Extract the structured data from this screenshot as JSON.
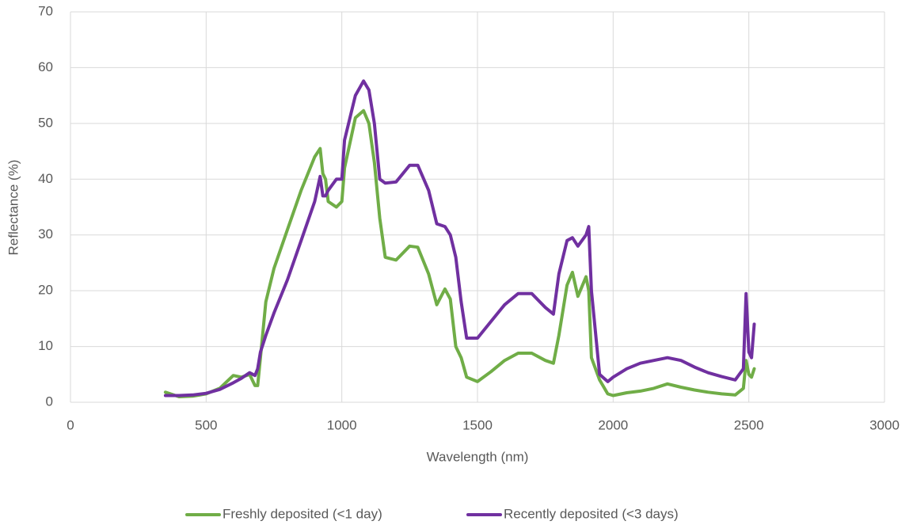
{
  "chart_data": {
    "type": "line",
    "x_label": "Wavelength (nm)",
    "y_label": "Reflectance (%)",
    "xlim": [
      0,
      3000
    ],
    "xticks": [
      0,
      500,
      1000,
      1500,
      2000,
      2500,
      3000
    ],
    "ylim": [
      0,
      70
    ],
    "yticks": [
      0,
      10,
      20,
      30,
      40,
      50,
      60,
      70
    ],
    "grid": true,
    "legend": "bottom",
    "x": [
      350,
      400,
      450,
      500,
      550,
      600,
      630,
      660,
      680,
      690,
      700,
      720,
      750,
      800,
      850,
      900,
      920,
      930,
      940,
      950,
      980,
      1000,
      1010,
      1050,
      1080,
      1100,
      1120,
      1140,
      1160,
      1200,
      1250,
      1280,
      1320,
      1350,
      1380,
      1400,
      1420,
      1440,
      1460,
      1500,
      1550,
      1600,
      1650,
      1700,
      1750,
      1780,
      1800,
      1830,
      1850,
      1870,
      1900,
      1910,
      1920,
      1950,
      1980,
      2000,
      2050,
      2100,
      2150,
      2200,
      2250,
      2300,
      2350,
      2400,
      2450,
      2480,
      2490,
      2500,
      2510,
      2520
    ],
    "series": [
      {
        "name": "Freshly deposited (<1 day)",
        "color": "#70ad47",
        "values": [
          1.8,
          1.0,
          1.1,
          1.5,
          2.5,
          4.8,
          4.5,
          5.0,
          3.0,
          3.0,
          8,
          18,
          24,
          31,
          38,
          44,
          45.5,
          41,
          40,
          36,
          35,
          36,
          42,
          51,
          52.3,
          50,
          43,
          33,
          26,
          25.5,
          28,
          27.8,
          23,
          17.5,
          20.3,
          18.5,
          10,
          8,
          4.5,
          3.7,
          5.5,
          7.5,
          8.8,
          8.8,
          7.5,
          7,
          12,
          21,
          23.3,
          19,
          22.5,
          20,
          8,
          4,
          1.5,
          1.2,
          1.7,
          2.0,
          2.5,
          3.3,
          2.7,
          2.2,
          1.8,
          1.5,
          1.3,
          2.5,
          7.5,
          5,
          4.5,
          6
        ]
      },
      {
        "name": "Recently deposited (<3 days)",
        "color": "#7030a0",
        "values": [
          1.2,
          1.2,
          1.3,
          1.6,
          2.3,
          3.5,
          4.3,
          5.3,
          4.8,
          6,
          9,
          12,
          16,
          22,
          29,
          36,
          40.5,
          37,
          37,
          38,
          40,
          40,
          47,
          55,
          57.6,
          56,
          50,
          40,
          39.3,
          39.5,
          42.5,
          42.5,
          38,
          32,
          31.5,
          30,
          26,
          18,
          11.5,
          11.5,
          14.5,
          17.5,
          19.5,
          19.5,
          17,
          15.8,
          23,
          29,
          29.5,
          28,
          30,
          31.5,
          20,
          5,
          3.7,
          4.5,
          6,
          7,
          7.5,
          8,
          7.5,
          6.3,
          5.3,
          4.6,
          4,
          6,
          19.5,
          9,
          8,
          14
        ]
      }
    ]
  }
}
